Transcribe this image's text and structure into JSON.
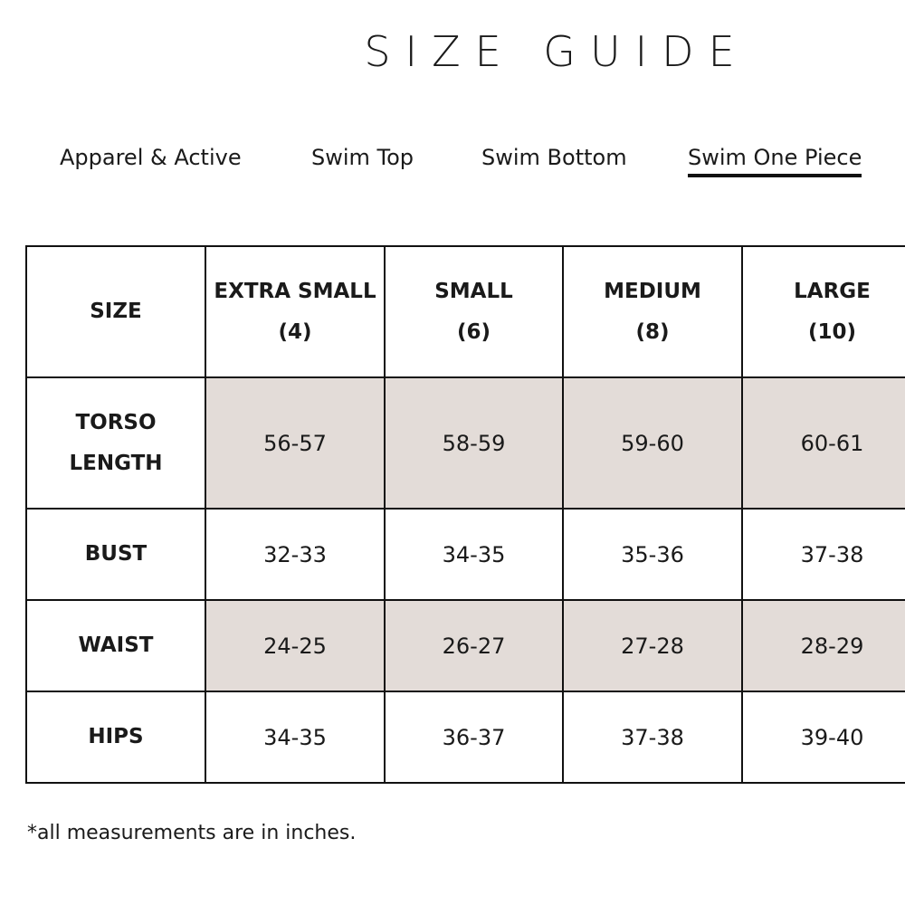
{
  "header": {
    "title": "SIZE GUIDE"
  },
  "tabs": [
    "Apparel & Active",
    "Swim Top",
    "Swim Bottom",
    "Swim One Piece"
  ],
  "table": {
    "corner": "SIZE",
    "columns": [
      {
        "name": "EXTRA SMALL",
        "size": "(4)"
      },
      {
        "name": "SMALL",
        "size": "(6)"
      },
      {
        "name": "MEDIUM",
        "size": "(8)"
      },
      {
        "name": "LARGE",
        "size": "(10)"
      }
    ],
    "rows": [
      {
        "label": "TORSO LENGTH",
        "cells": [
          "56-57",
          "58-59",
          "59-60",
          "60-61"
        ]
      },
      {
        "label": "BUST",
        "cells": [
          "32-33",
          "34-35",
          "35-36",
          "37-38"
        ]
      },
      {
        "label": "WAIST",
        "cells": [
          "24-25",
          "26-27",
          "27-28",
          "28-29"
        ]
      },
      {
        "label": "HIPS",
        "cells": [
          "34-35",
          "36-37",
          "37-38",
          "39-40"
        ]
      }
    ]
  },
  "footnote": "*all measurements are in inches."
}
